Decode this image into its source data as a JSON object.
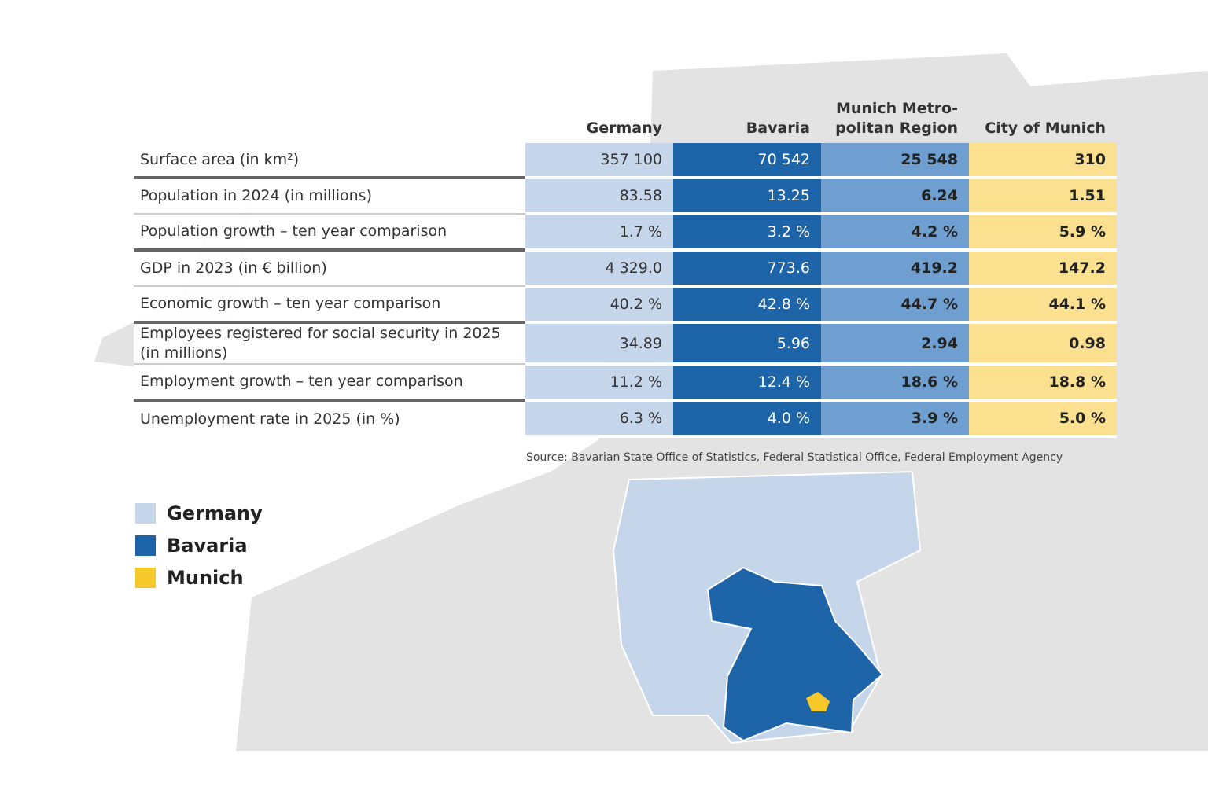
{
  "table": {
    "headers": [
      "Germany",
      "Bavaria",
      [
        "Munich Metro-",
        "politan Region"
      ],
      "City of Munich"
    ],
    "rows": [
      {
        "label": "Surface area (in km²)",
        "cells": [
          "357 100",
          "70 542",
          "25 548",
          "310"
        ]
      },
      {
        "label": "Population in 2024 (in millions)",
        "cells": [
          "83.58",
          "13.25",
          "6.24",
          "1.51"
        ]
      },
      {
        "label": "Population growth – ten year comparison",
        "cells": [
          "1.7 %",
          "3.2 %",
          "4.2 %",
          "5.9 %"
        ]
      },
      {
        "label": "GDP in 2023 (in € billion)",
        "cells": [
          "4 329.0",
          "773.6",
          "419.2",
          "147.2"
        ]
      },
      {
        "label": "Economic growth – ten year comparison",
        "cells": [
          "40.2 %",
          "42.8 %",
          "44.7 %",
          "44.1 %"
        ]
      },
      {
        "label": "Employees registered for social security in 2025 (in millions)",
        "cells": [
          "34.89",
          "5.96",
          "2.94",
          "0.98"
        ]
      },
      {
        "label": "Employment growth – ten year comparison",
        "cells": [
          "11.2 %",
          "12.4 %",
          "18.6 %",
          "18.8 %"
        ]
      },
      {
        "label": "Unemployment rate in 2025 (in %)",
        "cells": [
          "6.3 %",
          "4.0 %",
          "3.9 %",
          "5.0 %"
        ]
      }
    ]
  },
  "source": "Source: Bavarian State Office of Statistics, Federal Statistical Office, Federal Employment Agency",
  "legend": [
    {
      "label": "Germany",
      "color": "#c5d6ea"
    },
    {
      "label": "Bavaria",
      "color": "#1e64a8"
    },
    {
      "label": "Munich",
      "color": "#f6c829"
    }
  ]
}
